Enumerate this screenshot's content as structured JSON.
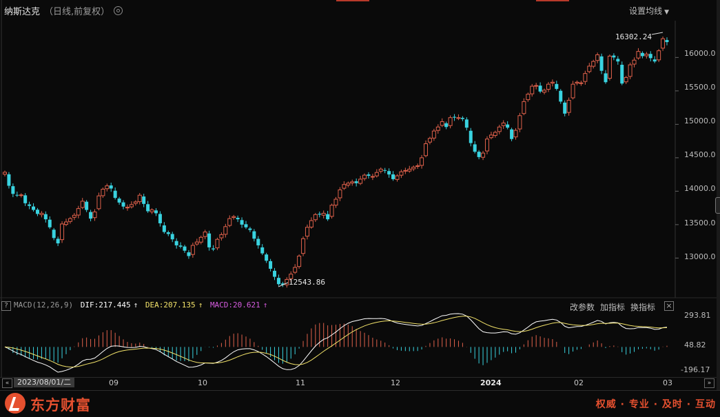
{
  "header": {
    "title": "纳斯达克",
    "subtitle": "（日线,前复权）",
    "ma_button": "设置均线"
  },
  "macd_panel": {
    "label": "MACD(12,26,9)",
    "dif": "DIF:217.445",
    "dea": "DEA:207.135",
    "macd": "MACD:20.621",
    "tools": [
      "改参数",
      "加指标",
      "换指标"
    ],
    "close": "×",
    "y_ticks": [
      "293.81",
      "48.82",
      "-196.17"
    ]
  },
  "annotations": {
    "high": "16302.24",
    "low": "12543.86"
  },
  "xaxis": {
    "current_date": "2023/08/01/二",
    "ticks": [
      "09",
      "10",
      "11",
      "12",
      "2024",
      "02",
      "03"
    ],
    "prev": "«",
    "next": "»"
  },
  "footer": {
    "brand": "东方财富",
    "slogan": "权威 · 专业 · 及时 · 互动"
  },
  "colors": {
    "up": "#e0614b",
    "down": "#39d3e0",
    "dif": "#ffffff",
    "dea": "#f3e36a",
    "brand": "#e5502f",
    "background": "#0a0a0a"
  },
  "chart_data": {
    "type": "candlestick",
    "title": "纳斯达克",
    "x_range": [
      "2023/08/01",
      "2024/03"
    ],
    "y_ticks": [
      "16000.0",
      "15500.0",
      "15000.0",
      "14500.0",
      "14000.0",
      "13500.0",
      "13000.0"
    ],
    "ylim": [
      12530,
      16550
    ],
    "grid": false,
    "closes": [
      14283,
      14081,
      13960,
      13938,
      13945,
      13820,
      13780,
      13720,
      13660,
      13670,
      13580,
      13460,
      13300,
      13220,
      13510,
      13540,
      13590,
      13640,
      13740,
      13850,
      13720,
      13590,
      13690,
      13930,
      14030,
      14080,
      14040,
      13900,
      13830,
      13770,
      13760,
      13800,
      13840,
      13940,
      13810,
      13700,
      13720,
      13670,
      13520,
      13390,
      13360,
      13280,
      13190,
      13170,
      13110,
      13030,
      13190,
      13240,
      13310,
      13390,
      13160,
      13130,
      13280,
      13350,
      13470,
      13590,
      13620,
      13580,
      13500,
      13460,
      13420,
      13290,
      13190,
      13070,
      12960,
      12840,
      12720,
      12610,
      12600,
      12680,
      12760,
      12860,
      13030,
      13290,
      13460,
      13560,
      13650,
      13650,
      13670,
      13580,
      13790,
      13880,
      14020,
      14100,
      14120,
      14140,
      14120,
      14180,
      14240,
      14230,
      14220,
      14280,
      14330,
      14310,
      14250,
      14180,
      14230,
      14290,
      14310,
      14330,
      14360,
      14380,
      14500,
      14710,
      14790,
      14900,
      14960,
      15040,
      14960,
      15100,
      15100,
      15100,
      15080,
      14950,
      14720,
      14590,
      14510,
      14570,
      14780,
      14840,
      14880,
      14960,
      15020,
      14950,
      14780,
      14910,
      15130,
      15340,
      15450,
      15570,
      15580,
      15490,
      15510,
      15600,
      15630,
      15530,
      15340,
      15160,
      15360,
      15600,
      15630,
      15620,
      15760,
      15870,
      15940,
      16040,
      15800,
      15630,
      16020,
      16000,
      15940,
      15610,
      15700,
      15890,
      15960,
      16090,
      16020,
      16050,
      15990,
      15940,
      16100,
      16280,
      16230
    ]
  }
}
